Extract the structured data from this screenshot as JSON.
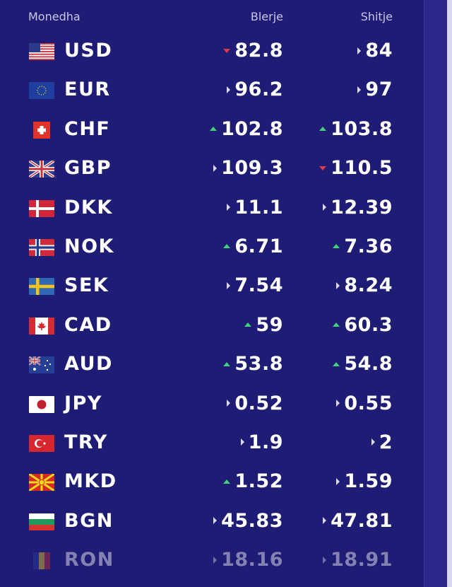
{
  "header": {
    "currency": "Monedha",
    "buy": "Blerje",
    "sell": "Shitje"
  },
  "colors": {
    "background": "#1e1c74",
    "up": "#3fd27a",
    "down": "#e03a4e",
    "same": "#d9d8ee"
  },
  "rows": [
    {
      "code": "USD",
      "flag": "us-flag-icon",
      "buy": "82.8",
      "buy_trend": "down",
      "sell": "84",
      "sell_trend": "same"
    },
    {
      "code": "EUR",
      "flag": "eu-flag-icon",
      "buy": "96.2",
      "buy_trend": "same",
      "sell": "97",
      "sell_trend": "same"
    },
    {
      "code": "CHF",
      "flag": "ch-flag-icon",
      "buy": "102.8",
      "buy_trend": "up",
      "sell": "103.8",
      "sell_trend": "up"
    },
    {
      "code": "GBP",
      "flag": "gb-flag-icon",
      "buy": "109.3",
      "buy_trend": "same",
      "sell": "110.5",
      "sell_trend": "down"
    },
    {
      "code": "DKK",
      "flag": "dk-flag-icon",
      "buy": "11.1",
      "buy_trend": "same",
      "sell": "12.39",
      "sell_trend": "same"
    },
    {
      "code": "NOK",
      "flag": "no-flag-icon",
      "buy": "6.71",
      "buy_trend": "up",
      "sell": "7.36",
      "sell_trend": "up"
    },
    {
      "code": "SEK",
      "flag": "se-flag-icon",
      "buy": "7.54",
      "buy_trend": "same",
      "sell": "8.24",
      "sell_trend": "same"
    },
    {
      "code": "CAD",
      "flag": "ca-flag-icon",
      "buy": "59",
      "buy_trend": "up",
      "sell": "60.3",
      "sell_trend": "up"
    },
    {
      "code": "AUD",
      "flag": "au-flag-icon",
      "buy": "53.8",
      "buy_trend": "up",
      "sell": "54.8",
      "sell_trend": "up"
    },
    {
      "code": "JPY",
      "flag": "jp-flag-icon",
      "buy": "0.52",
      "buy_trend": "same",
      "sell": "0.55",
      "sell_trend": "same"
    },
    {
      "code": "TRY",
      "flag": "tr-flag-icon",
      "buy": "1.9",
      "buy_trend": "same",
      "sell": "2",
      "sell_trend": "same"
    },
    {
      "code": "MKD",
      "flag": "mk-flag-icon",
      "buy": "1.52",
      "buy_trend": "up",
      "sell": "1.59",
      "sell_trend": "same"
    },
    {
      "code": "BGN",
      "flag": "bg-flag-icon",
      "buy": "45.83",
      "buy_trend": "same",
      "sell": "47.81",
      "sell_trend": "same"
    },
    {
      "code": "RON",
      "flag": "ro-flag-icon",
      "buy": "18.16",
      "buy_trend": "same",
      "sell": "18.91",
      "sell_trend": "same"
    }
  ]
}
